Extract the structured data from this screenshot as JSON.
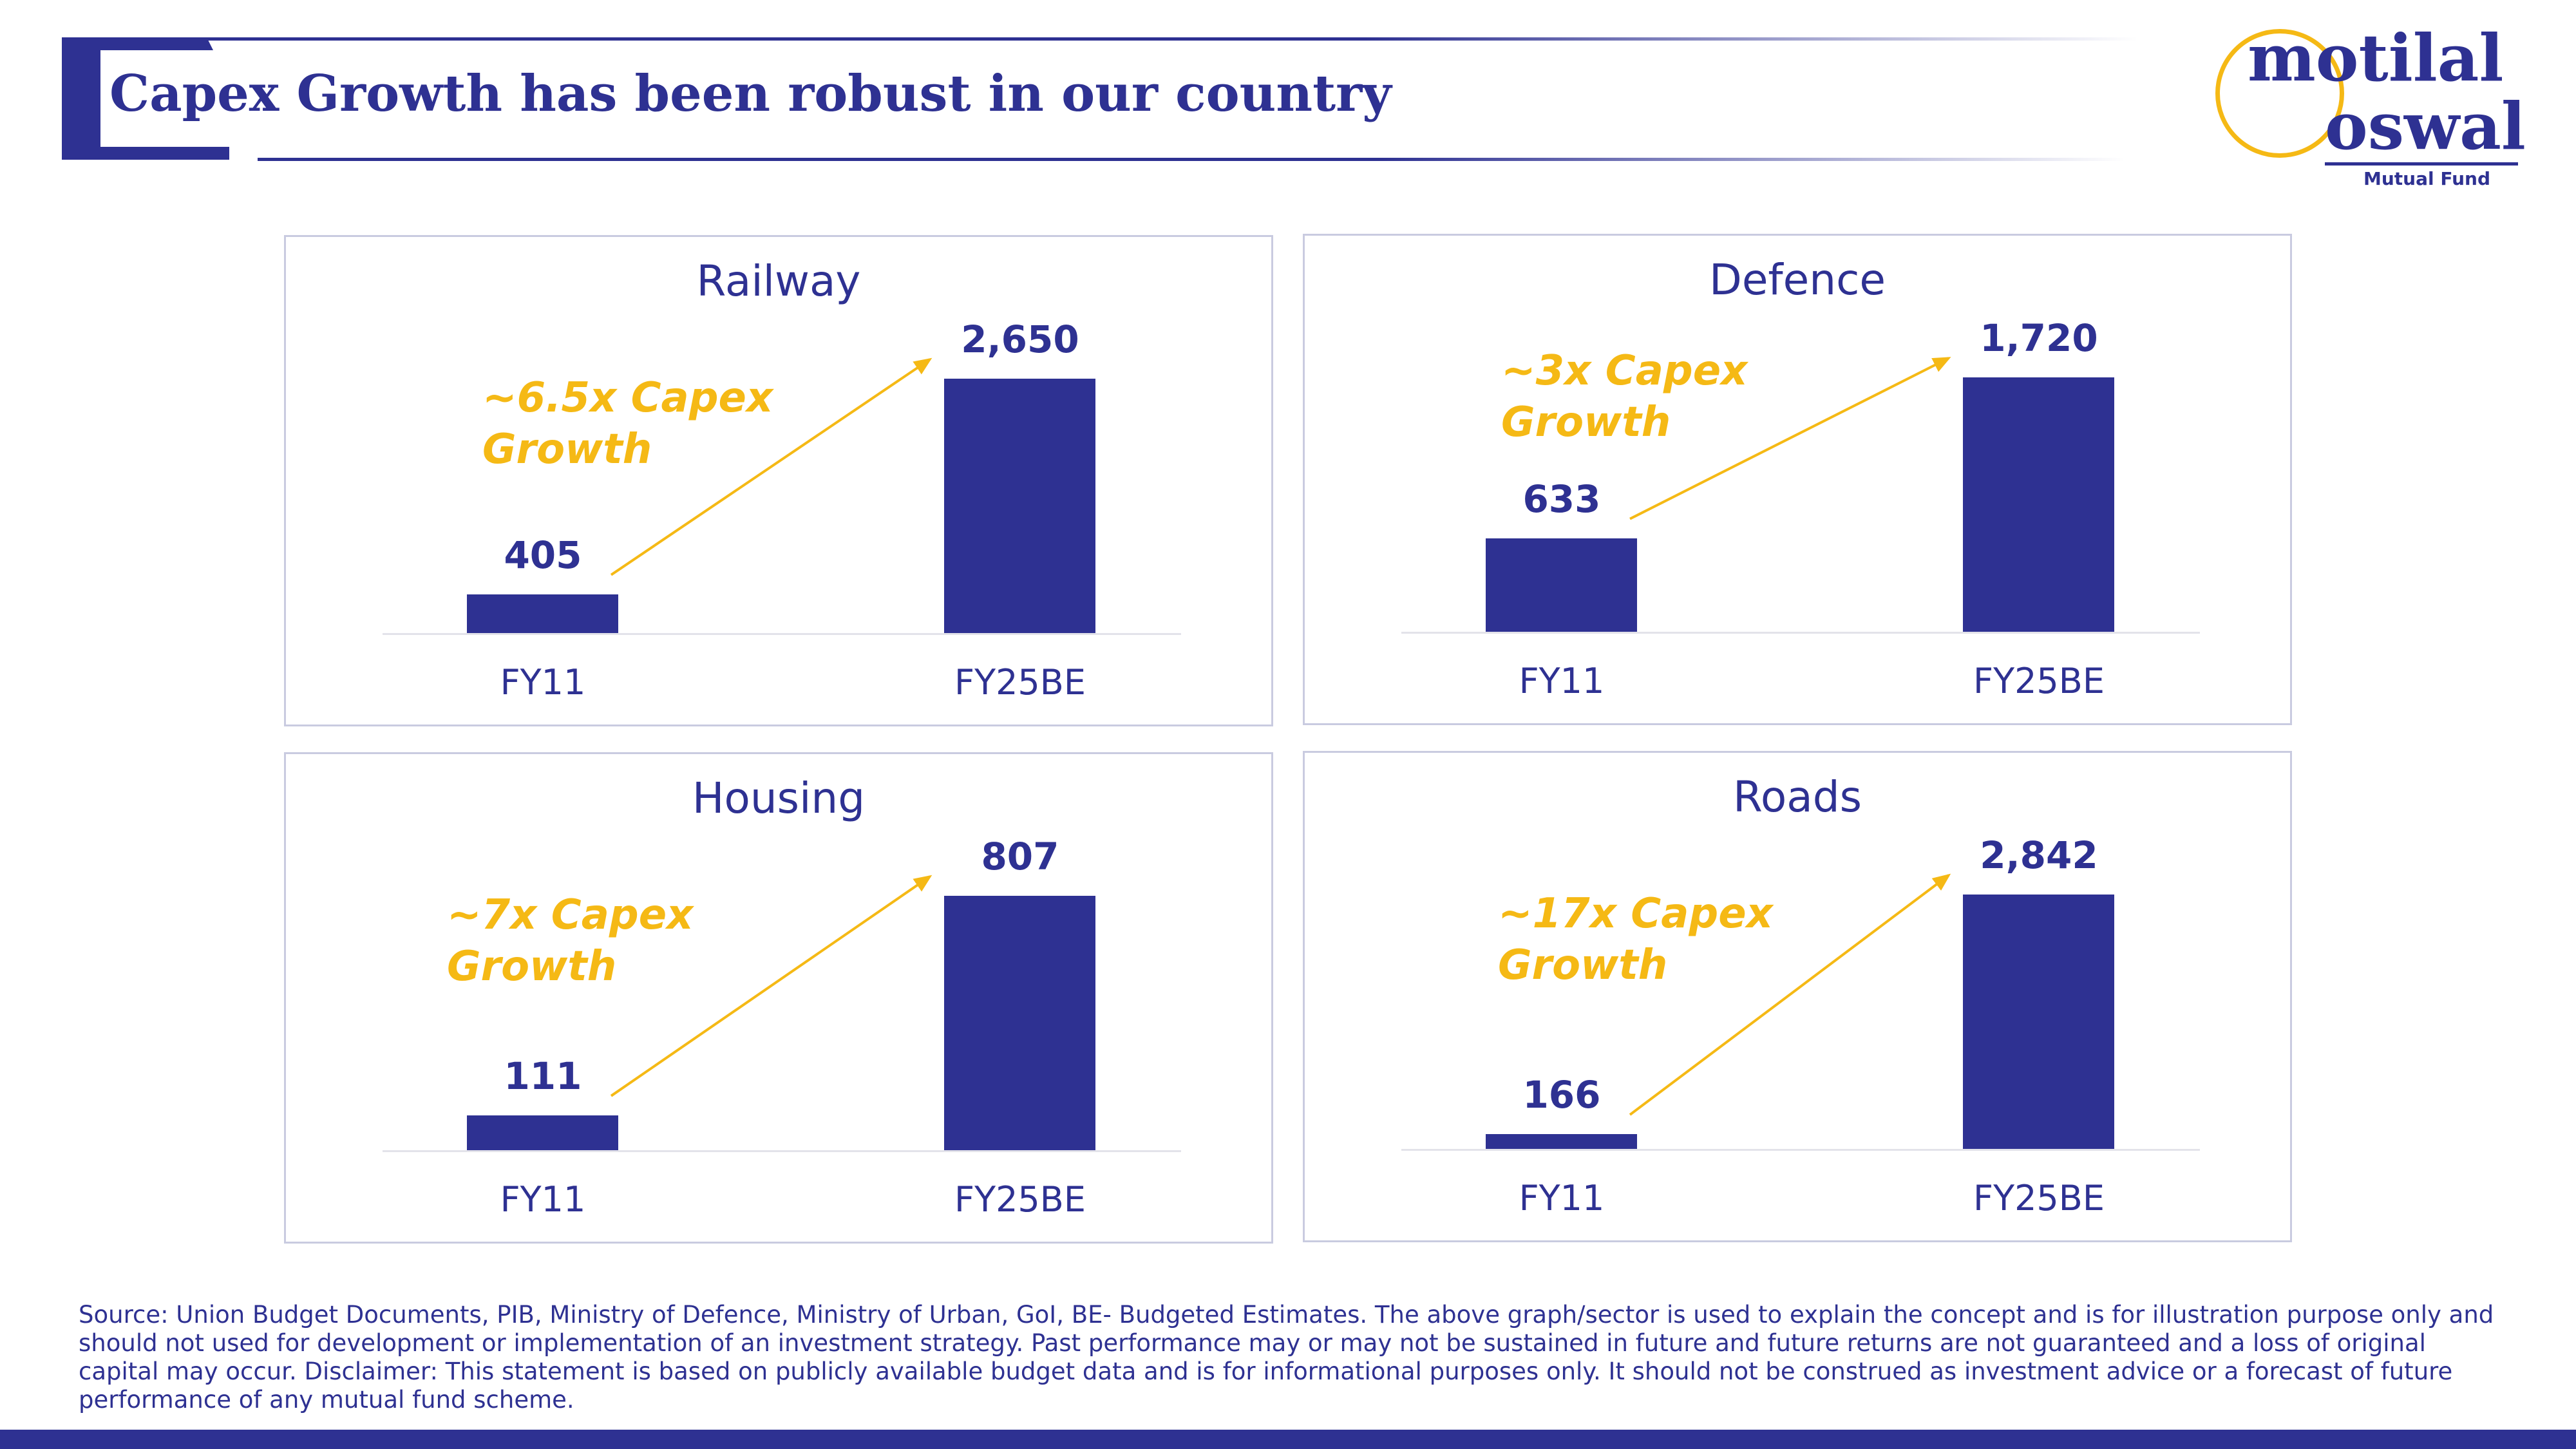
{
  "header": {
    "title": "Capex Growth has been robust in our country"
  },
  "logo": {
    "line1": "motilal",
    "line2": "oswal",
    "sub": "Mutual Fund"
  },
  "chart_data": [
    {
      "type": "bar",
      "title": "Railway",
      "categories": [
        "FY11",
        "FY25BE"
      ],
      "values": [
        405,
        2650
      ],
      "value_labels": [
        "405",
        "2,650"
      ],
      "annotation": "~6.5x Capex Growth"
    },
    {
      "type": "bar",
      "title": "Defence",
      "categories": [
        "FY11",
        "FY25BE"
      ],
      "values": [
        633,
        1720
      ],
      "value_labels": [
        "633",
        "1,720"
      ],
      "annotation": "~3x Capex Growth"
    },
    {
      "type": "bar",
      "title": "Housing",
      "categories": [
        "FY11",
        "FY25BE"
      ],
      "values": [
        111,
        807
      ],
      "value_labels": [
        "111",
        "807"
      ],
      "annotation": "~7x Capex Growth"
    },
    {
      "type": "bar",
      "title": "Roads",
      "categories": [
        "FY11",
        "FY25BE"
      ],
      "values": [
        166,
        2842
      ],
      "value_labels": [
        "166",
        "2,842"
      ],
      "annotation": "~17x Capex Growth"
    }
  ],
  "footer": {
    "source": "Source: Union Budget Documents, PIB, Ministry of Defence, Ministry of Urban, GoI, BE- Budgeted Estimates. The above graph/sector is used to explain the concept and is for illustration purpose only and should not used for development or implementation of an investment strategy. Past performance may or may not be sustained in future and future returns are not guaranteed and a loss of original capital may occur. Disclaimer: This statement is based on publicly available budget data and is for informational purposes only. It should not be construed as investment advice or a forecast of future performance of any mutual fund scheme."
  },
  "colors": {
    "primary": "#2e3192",
    "accent": "#f5b915"
  }
}
